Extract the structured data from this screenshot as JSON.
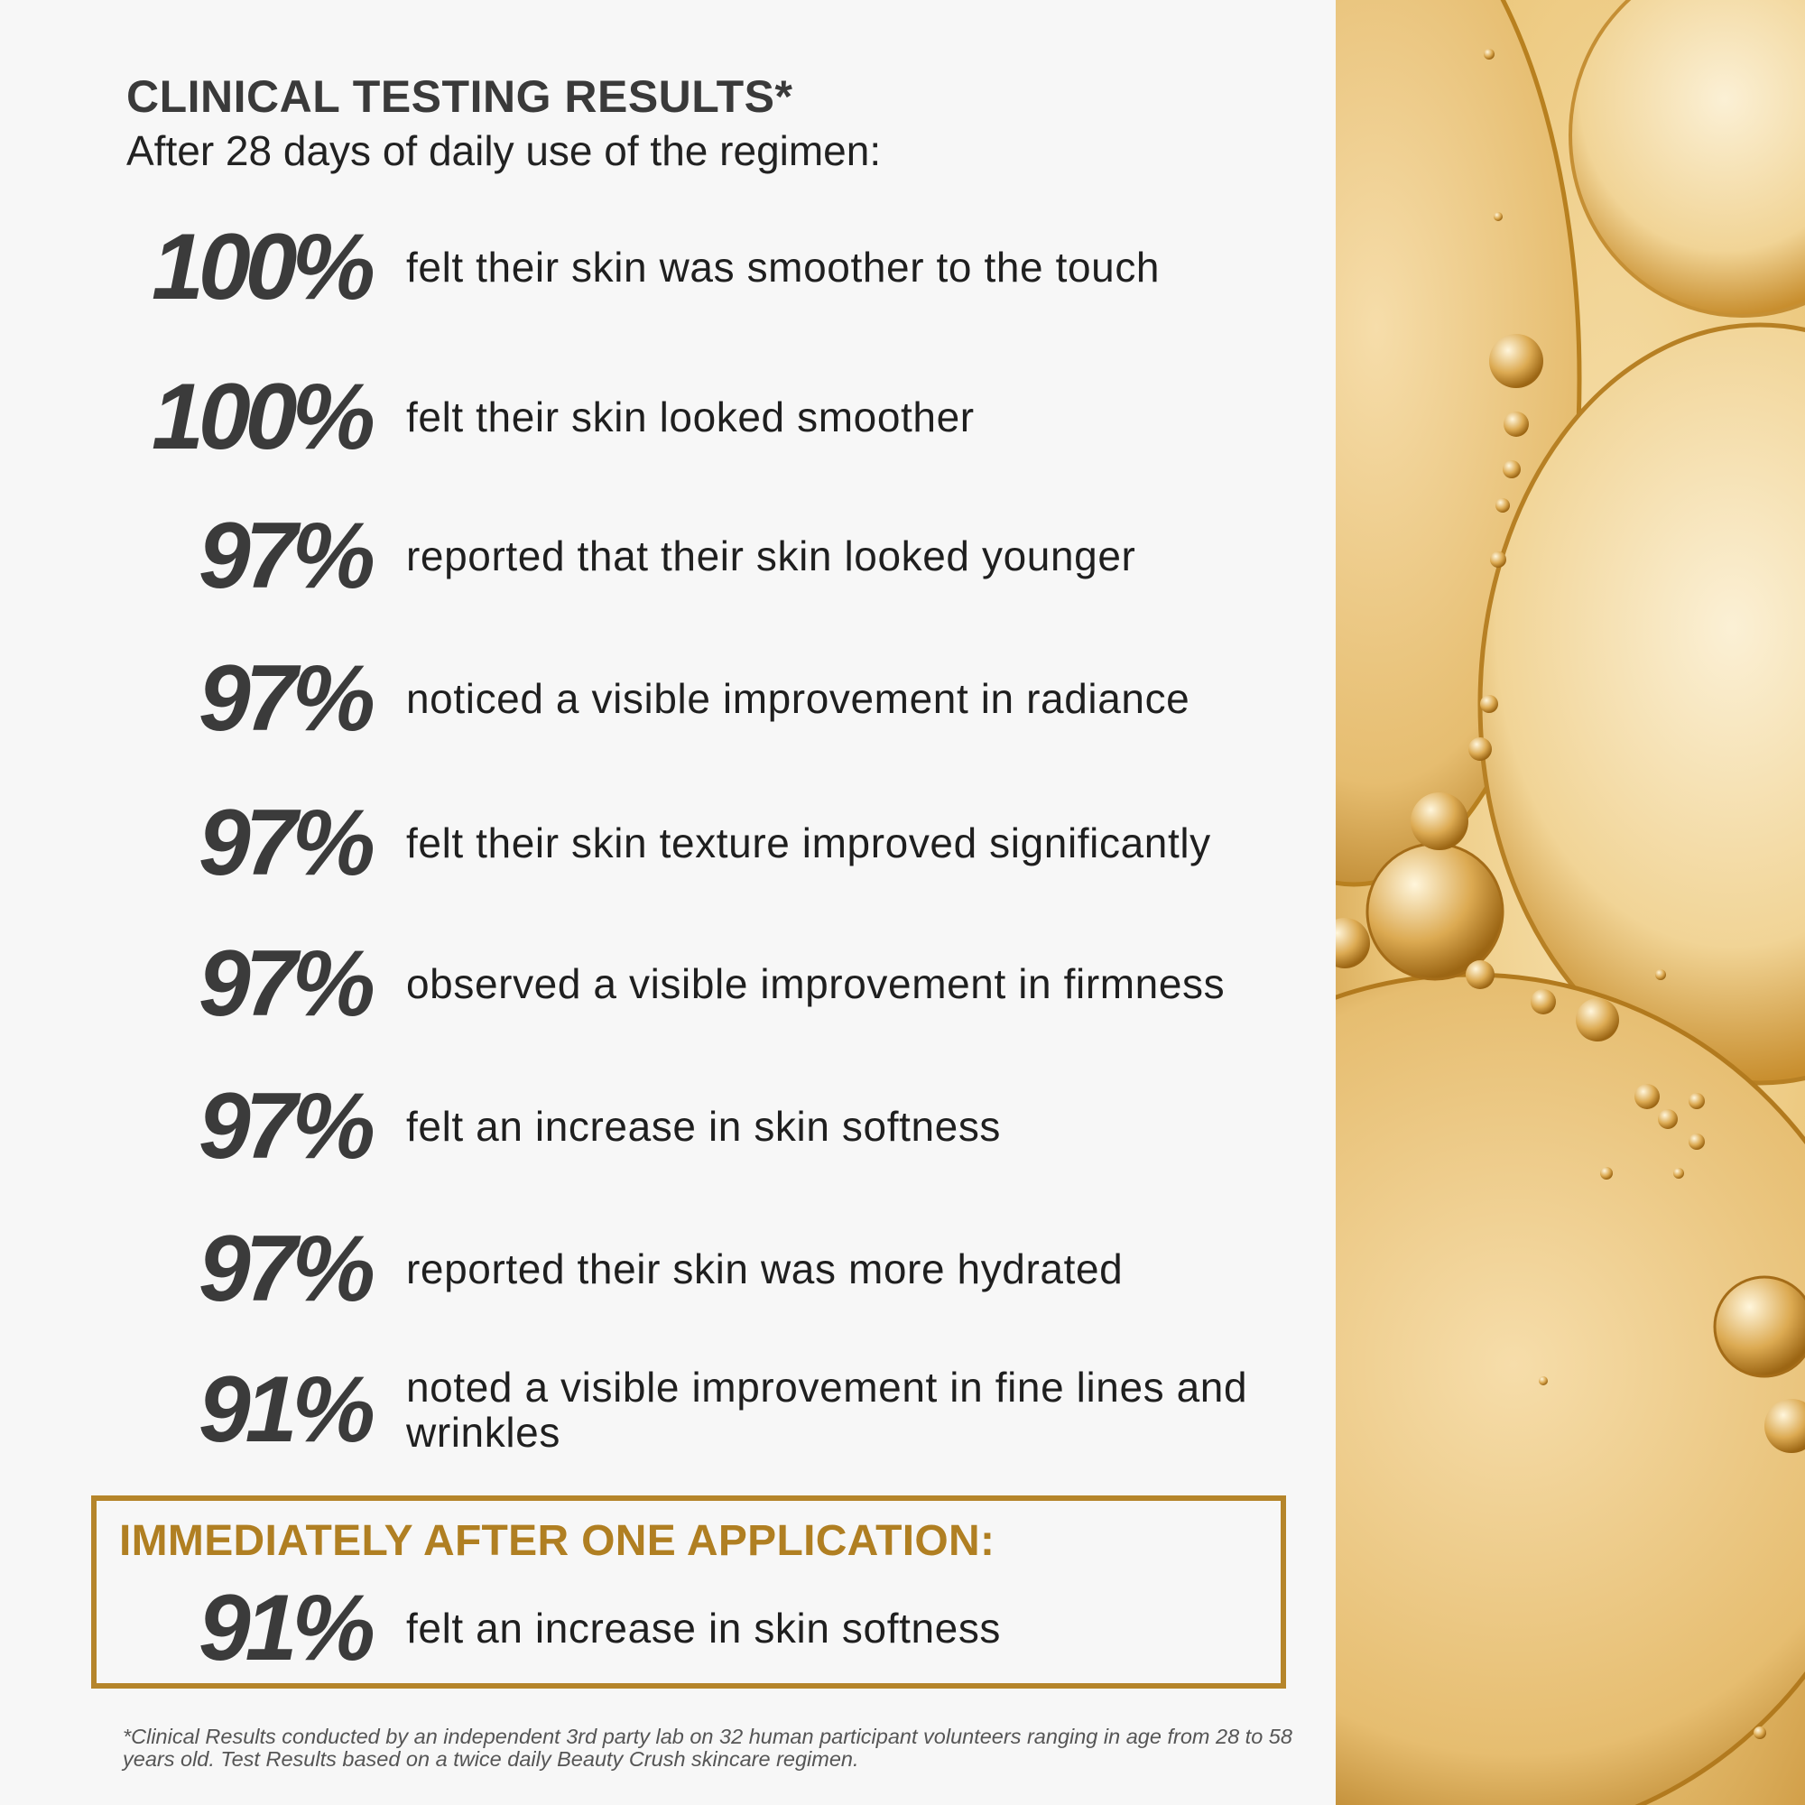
{
  "header": {
    "title": "CLINICAL TESTING RESULTS*",
    "subtitle": "After 28 days of daily use of the regimen:"
  },
  "stats": [
    {
      "percent": "100%",
      "text": "felt their skin was smoother to the touch"
    },
    {
      "percent": "100%",
      "text": "felt their skin looked smoother"
    },
    {
      "percent": "97%",
      "text": "reported that their skin looked younger"
    },
    {
      "percent": "97%",
      "text": "noticed a visible improvement in radiance"
    },
    {
      "percent": "97%",
      "text": "felt their skin texture improved significantly"
    },
    {
      "percent": "97%",
      "text": "observed a visible improvement in firmness"
    },
    {
      "percent": "97%",
      "text": "felt an increase in skin softness"
    },
    {
      "percent": "97%",
      "text": "reported their skin was more hydrated"
    },
    {
      "percent": "91%",
      "text": "noted a visible improvement in fine lines and wrinkles"
    }
  ],
  "callout": {
    "heading": "IMMEDIATELY AFTER ONE APPLICATION:",
    "percent": "91%",
    "text": "felt an increase in skin softness"
  },
  "footnote": "*Clinical Results conducted by an independent 3rd party lab on 32 human participant volunteers ranging in age from 28 to 58 years old. Test Results based on a twice daily Beauty Crush skincare regimen.",
  "colors": {
    "accent_gold": "#b5852a",
    "percent_gray": "#3b3b3b",
    "background": "#f7f7f7"
  },
  "icons": {
    "decorative_image": "golden-oil-bubbles-image"
  }
}
